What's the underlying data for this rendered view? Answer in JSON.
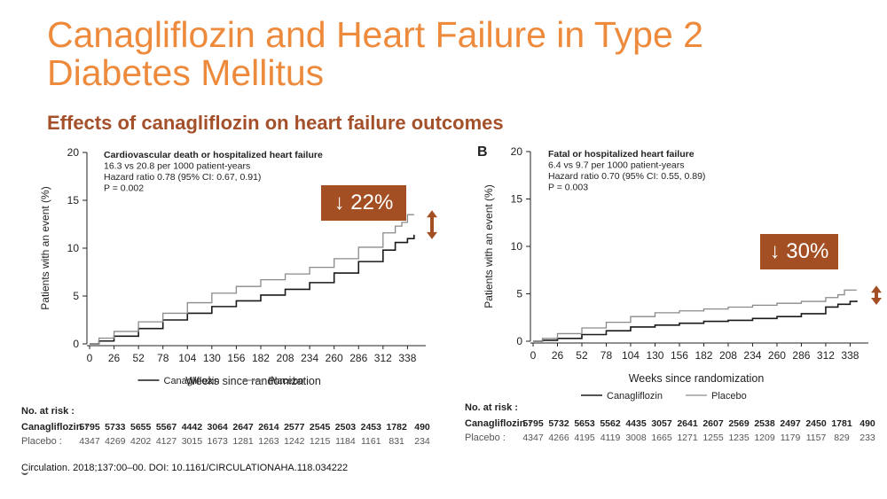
{
  "slide": {
    "title": "Canagliflozin and Heart Failure in Type 2 Diabetes Mellitus",
    "subtitle": "Effects of canagliflozin on heart failure outcomes",
    "citation": "Circulation. 2018;137:00–00. DOI: 10.1161/CIRCULATIONAHA.118.034222",
    "panel_b_letter": "B",
    "colors": {
      "title": "#ee8a3c",
      "subtitle": "#a4502a",
      "callout": "#a34f23",
      "canagliflozin": "#1a1a1a",
      "placebo": "#8a8a8a"
    }
  },
  "chart_data": [
    {
      "type": "line",
      "annotation_lines": [
        "Cardiovascular death or hospitalized heart failure",
        "16.3 vs 20.8 per 1000 patient-years",
        "Hazard ratio 0.78 (95% CI: 0.67, 0.91)",
        "P = 0.002"
      ],
      "xlabel": "Weeks since randomization",
      "ylabel": "Patients with an event (%)",
      "xticks": [
        0,
        26,
        52,
        78,
        104,
        130,
        156,
        182,
        208,
        234,
        260,
        286,
        312,
        338
      ],
      "yticks": [
        0,
        5,
        10,
        15,
        20
      ],
      "xlim": [
        0,
        348
      ],
      "ylim": [
        0,
        20
      ],
      "legend": [
        "Canagliflozin",
        "Placebo"
      ],
      "legend_position": "bottom-center",
      "callout": "↓ 22%",
      "series": [
        {
          "name": "Canagliflozin",
          "x": [
            0,
            10,
            26,
            52,
            78,
            104,
            130,
            156,
            182,
            208,
            234,
            260,
            286,
            312,
            325,
            338,
            345
          ],
          "y": [
            0,
            0.3,
            0.8,
            1.6,
            2.5,
            3.2,
            3.9,
            4.5,
            5.1,
            5.7,
            6.4,
            7.4,
            8.6,
            9.8,
            10.6,
            11.0,
            11.4
          ]
        },
        {
          "name": "Placebo",
          "x": [
            0,
            10,
            26,
            52,
            78,
            104,
            130,
            156,
            182,
            208,
            234,
            260,
            286,
            312,
            325,
            332,
            338,
            345
          ],
          "y": [
            0,
            0.6,
            1.3,
            2.3,
            3.2,
            4.3,
            5.3,
            6.0,
            6.7,
            7.3,
            8.0,
            8.9,
            10.1,
            11.6,
            12.3,
            12.7,
            13.5,
            13.5
          ]
        }
      ],
      "risk_table": {
        "title": "No. at risk :",
        "rows": [
          {
            "label": "Canagliflozin :",
            "values": [
              "5795",
              "5733",
              "5655",
              "5567",
              "4442",
              "3064",
              "2647",
              "2614",
              "2577",
              "2545",
              "2503",
              "2453",
              "1782",
              "490"
            ]
          },
          {
            "label": "Placebo :",
            "values": [
              "4347",
              "4269",
              "4202",
              "4127",
              "3015",
              "1673",
              "1281",
              "1263",
              "1242",
              "1215",
              "1184",
              "1161",
              "831",
              "234"
            ]
          }
        ]
      }
    },
    {
      "type": "line",
      "annotation_lines": [
        "Fatal or hospitalized heart failure",
        "6.4 vs 9.7 per 1000 patient-years",
        "Hazard ratio 0.70 (95% CI: 0.55, 0.89)",
        "P = 0.003"
      ],
      "xlabel": "Weeks since randomization",
      "ylabel": "Patients with an event (%)",
      "xticks": [
        0,
        26,
        52,
        78,
        104,
        130,
        156,
        182,
        208,
        234,
        260,
        286,
        312,
        338
      ],
      "yticks": [
        0,
        5,
        10,
        15,
        20
      ],
      "xlim": [
        0,
        348
      ],
      "ylim": [
        0,
        20
      ],
      "legend": [
        "Canagliflozin",
        "Placebo"
      ],
      "legend_position": "bottom-center",
      "callout": "↓ 30%",
      "series": [
        {
          "name": "Canagliflozin",
          "x": [
            0,
            10,
            26,
            52,
            78,
            104,
            130,
            156,
            182,
            208,
            234,
            260,
            286,
            312,
            325,
            338,
            345
          ],
          "y": [
            0,
            0.1,
            0.3,
            0.7,
            1.1,
            1.5,
            1.7,
            1.9,
            2.1,
            2.2,
            2.4,
            2.6,
            2.9,
            3.6,
            3.9,
            4.2,
            4.3
          ]
        },
        {
          "name": "Placebo",
          "x": [
            0,
            10,
            26,
            52,
            78,
            104,
            130,
            156,
            182,
            208,
            234,
            260,
            286,
            312,
            325,
            332,
            338,
            345
          ],
          "y": [
            0,
            0.3,
            0.8,
            1.4,
            2.0,
            2.6,
            3.0,
            3.2,
            3.4,
            3.6,
            3.8,
            4.0,
            4.2,
            4.6,
            4.9,
            5.4,
            5.4,
            5.4
          ]
        }
      ],
      "risk_table": {
        "title": "No. at risk :",
        "rows": [
          {
            "label": "Canagliflozin :",
            "values": [
              "5795",
              "5732",
              "5653",
              "5562",
              "4435",
              "3057",
              "2641",
              "2607",
              "2569",
              "2538",
              "2497",
              "2450",
              "1781",
              "490"
            ]
          },
          {
            "label": "Placebo :",
            "values": [
              "4347",
              "4266",
              "4195",
              "4119",
              "3008",
              "1665",
              "1271",
              "1255",
              "1235",
              "1209",
              "1179",
              "1157",
              "829",
              "233"
            ]
          }
        ]
      }
    }
  ]
}
